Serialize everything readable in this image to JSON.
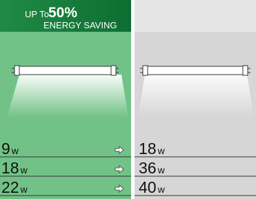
{
  "header": {
    "prefix": "UP To",
    "percent": "50%",
    "label": "ENERGY SAVING"
  },
  "unit": "w",
  "rows": [
    {
      "led": "9",
      "old": "18"
    },
    {
      "led": "18",
      "old": "36"
    },
    {
      "led": "22",
      "old": "40"
    }
  ]
}
